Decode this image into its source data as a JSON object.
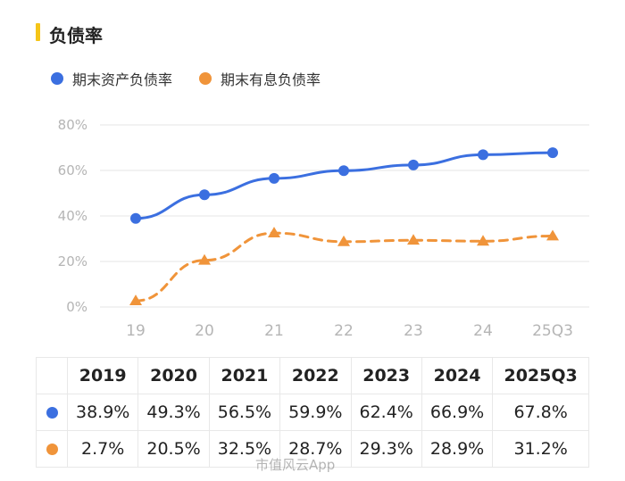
{
  "header": {
    "title": "负债率"
  },
  "legend": [
    {
      "label": "期末资产负债率",
      "color": "#3b6fe0"
    },
    {
      "label": "期末有息负债率",
      "color": "#f0943a"
    }
  ],
  "chart_data": {
    "type": "line",
    "categories": [
      "19",
      "20",
      "21",
      "22",
      "23",
      "24",
      "25Q3"
    ],
    "series": [
      {
        "name": "期末资产负债率",
        "values": [
          38.9,
          49.3,
          56.5,
          59.9,
          62.4,
          66.9,
          67.8
        ],
        "color": "#3b6fe0",
        "style": "solid",
        "marker": "circle"
      },
      {
        "name": "期末有息负债率",
        "values": [
          2.7,
          20.5,
          32.5,
          28.7,
          29.3,
          28.9,
          31.2
        ],
        "color": "#f0943a",
        "style": "dashed",
        "marker": "triangle"
      }
    ],
    "y_ticks": [
      "0%",
      "20%",
      "40%",
      "60%",
      "80%"
    ],
    "ylim": [
      0,
      80
    ],
    "grid": true
  },
  "table": {
    "headers": [
      "2019",
      "2020",
      "2021",
      "2022",
      "2023",
      "2024",
      "2025Q3"
    ],
    "rows": [
      {
        "color": "#3b6fe0",
        "cells": [
          "38.9%",
          "49.3%",
          "56.5%",
          "59.9%",
          "62.4%",
          "66.9%",
          "67.8%"
        ]
      },
      {
        "color": "#f0943a",
        "cells": [
          "2.7%",
          "20.5%",
          "32.5%",
          "28.7%",
          "29.3%",
          "28.9%",
          "31.2%"
        ]
      }
    ]
  },
  "watermark": "市值风云App"
}
